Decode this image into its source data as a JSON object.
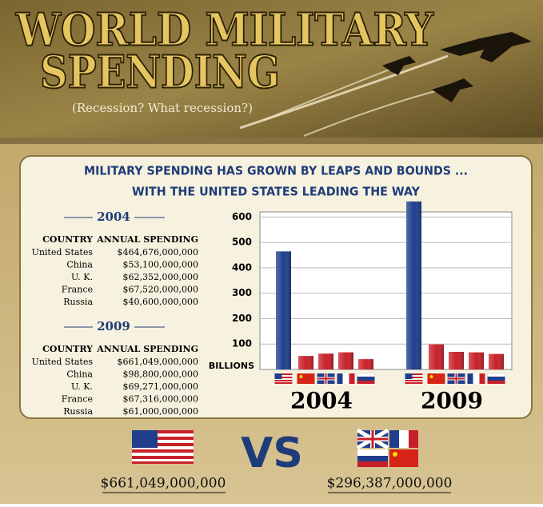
{
  "header": {
    "title_line1": "WORLD MILITARY",
    "title_line2": "SPENDING",
    "subtitle": "(Recession? What recession?)"
  },
  "headline": [
    "MILITARY SPENDING HAS GROWN BY LEAPS AND BOUNDS ...",
    "WITH THE UNITED STATES LEADING THE WAY"
  ],
  "tables": [
    {
      "year": "2004",
      "columns": [
        "COUNTRY",
        "ANNUAL SPENDING"
      ],
      "rows": [
        [
          "United States",
          "$464,676,000,000"
        ],
        [
          "China",
          "$53,100,000,000"
        ],
        [
          "U. K.",
          "$62,352,000,000"
        ],
        [
          "France",
          "$67,520,000,000"
        ],
        [
          "Russia",
          "$40,600,000,000"
        ]
      ]
    },
    {
      "year": "2009",
      "columns": [
        "COUNTRY",
        "ANNUAL SPENDING"
      ],
      "rows": [
        [
          "United States",
          "$661,049,000,000"
        ],
        [
          "China",
          "$98,800,000,000"
        ],
        [
          "U. K.",
          "$69,271,000,000"
        ],
        [
          "France",
          "$67,316,000,000"
        ],
        [
          "Russia",
          "$61,000,000,000"
        ]
      ]
    }
  ],
  "chart_data": {
    "type": "bar",
    "y_label": "BILLIONS",
    "categories": [
      "2004",
      "2009"
    ],
    "series": [
      {
        "color": "#1f3f8c",
        "values": [
          464.676,
          661.049
        ]
      },
      {
        "color": "#c8202a",
        "values": [
          53.1,
          98.8
        ]
      },
      {
        "color": "#c8202a",
        "values": [
          62.352,
          69.271
        ]
      },
      {
        "color": "#c8202a",
        "values": [
          67.52,
          67.316
        ]
      },
      {
        "color": "#c8202a",
        "values": [
          40.6,
          61
        ]
      }
    ],
    "ylim": [
      0,
      620
    ],
    "yticks": [
      100,
      200,
      300,
      400,
      500,
      600
    ],
    "grid": true
  },
  "comparison": {
    "left": "$661,049,000,000",
    "vs": "VS",
    "right": "$296,387,000,000"
  }
}
